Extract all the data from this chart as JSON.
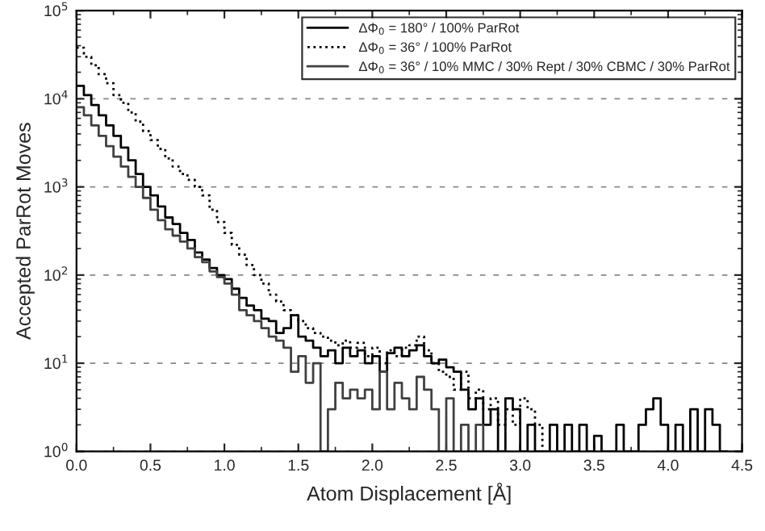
{
  "chart_data": {
    "type": "step",
    "xlabel": "Atom Displacement [Å]",
    "ylabel": "Accepted ParRot Moves",
    "log": "y",
    "grid": "y",
    "legend": "top right",
    "xlim": [
      0,
      4.5
    ],
    "xticks": [
      {
        "value": 0,
        "label": "0.0"
      },
      {
        "value": 0.5,
        "label": "0.5"
      },
      {
        "value": 1,
        "label": "1.0"
      },
      {
        "value": 1.5,
        "label": "1.5"
      },
      {
        "value": 2,
        "label": "2.0"
      },
      {
        "value": 2.5,
        "label": "2.5"
      },
      {
        "value": 3,
        "label": "3.0"
      },
      {
        "value": 3.5,
        "label": "3.5"
      },
      {
        "value": 4,
        "label": "4.0"
      },
      {
        "value": 4.5,
        "label": "4.5"
      }
    ],
    "ylim": [
      1,
      100000
    ],
    "yticks": [
      {
        "value": 1,
        "label": "10$^{0}$"
      },
      {
        "value": 10,
        "label": "10$^{1}$"
      },
      {
        "value": 100,
        "label": "10$^{2}$"
      },
      {
        "value": 1000,
        "label": "10$^{3}$"
      },
      {
        "value": 10000,
        "label": "10$^{4}$"
      },
      {
        "value": 100000,
        "label": "10$^{5}$"
      }
    ],
    "series": [
      {
        "name": "ΔΦ$_{0}$ = 180° / 100% ParRot",
        "color": "#000000",
        "line_style": "solid",
        "x": [
          0,
          0.05,
          0.1,
          0.15,
          0.2,
          0.25,
          0.3,
          0.35,
          0.4,
          0.45,
          0.5,
          0.55,
          0.6,
          0.65,
          0.7,
          0.75,
          0.8,
          0.85,
          0.9,
          0.95,
          1,
          1.05,
          1.1,
          1.15,
          1.2,
          1.25,
          1.3,
          1.35,
          1.4,
          1.45,
          1.5,
          1.55,
          1.6,
          1.65,
          1.7,
          1.75,
          1.8,
          1.85,
          1.9,
          1.95,
          2,
          2.05,
          2.1,
          2.15,
          2.2,
          2.25,
          2.3,
          2.35,
          2.4,
          2.45,
          2.5,
          2.55,
          2.6,
          2.65,
          2.7,
          2.75,
          2.8,
          2.85,
          2.9,
          2.95,
          3,
          3.05,
          3.1,
          3.15,
          3.2,
          3.25,
          3.3,
          3.35,
          3.4,
          3.45,
          3.5,
          3.55,
          3.6,
          3.65,
          3.7,
          3.75,
          3.8,
          3.85,
          3.9,
          3.95,
          4,
          4.05,
          4.1,
          4.15,
          4.2,
          4.25,
          4.3,
          4.35,
          4.4
        ],
        "values": [
          14000,
          11000,
          8500,
          6500,
          5000,
          3800,
          2800,
          2000,
          1400,
          1000,
          800,
          600,
          450,
          380,
          300,
          250,
          180,
          150,
          120,
          100,
          90,
          70,
          55,
          45,
          40,
          32,
          30,
          22,
          25,
          35,
          20,
          18,
          15,
          12,
          14,
          10,
          15,
          12,
          14,
          10,
          12,
          8,
          13,
          15,
          12,
          14,
          16,
          12,
          10,
          11,
          9,
          8,
          5,
          3,
          4,
          2,
          3,
          1,
          4,
          3,
          1,
          2,
          1,
          1,
          2,
          1,
          2,
          1,
          2,
          1,
          1.5,
          1,
          1,
          2,
          1,
          1,
          2,
          3,
          4,
          2,
          1,
          2,
          1,
          3,
          1,
          3,
          2,
          1,
          1
        ]
      },
      {
        "name": "ΔΦ$_{0}$ = 36° / 100% ParRot",
        "color": "#000000",
        "line_style": "dotted",
        "x": [
          0,
          0.05,
          0.1,
          0.15,
          0.2,
          0.25,
          0.3,
          0.35,
          0.4,
          0.45,
          0.5,
          0.55,
          0.6,
          0.65,
          0.7,
          0.75,
          0.8,
          0.85,
          0.9,
          0.95,
          1,
          1.05,
          1.1,
          1.15,
          1.2,
          1.25,
          1.3,
          1.35,
          1.4,
          1.45,
          1.5,
          1.55,
          1.6,
          1.65,
          1.7,
          1.75,
          1.8,
          1.85,
          1.9,
          1.95,
          2,
          2.05,
          2.1,
          2.15,
          2.2,
          2.25,
          2.3,
          2.35,
          2.4,
          2.45,
          2.5,
          2.55,
          2.6,
          2.65,
          2.7,
          2.75,
          2.8,
          2.85,
          2.9,
          2.95,
          3,
          3.05,
          3.1,
          3.15
        ],
        "values": [
          38000,
          30000,
          24000,
          19000,
          15000,
          11000,
          9000,
          7000,
          5500,
          4300,
          3400,
          2700,
          2100,
          1700,
          1400,
          1200,
          1000,
          800,
          550,
          400,
          300,
          220,
          170,
          130,
          100,
          80,
          60,
          50,
          40,
          35,
          30,
          25,
          22,
          20,
          18,
          16,
          18,
          15,
          17,
          12,
          15,
          10,
          14,
          12,
          15,
          16,
          20,
          14,
          10,
          8,
          7,
          5,
          8,
          4,
          5,
          3,
          4,
          2,
          3,
          2,
          4,
          3,
          2,
          1
        ]
      },
      {
        "name": "ΔΦ$_{0}$ = 36° / 10% MMC / 30% Rept / 30% CBMC / 30% ParRot",
        "color": "#404040",
        "line_style": "solid",
        "x": [
          0,
          0.05,
          0.1,
          0.15,
          0.2,
          0.25,
          0.3,
          0.35,
          0.4,
          0.45,
          0.5,
          0.55,
          0.6,
          0.65,
          0.7,
          0.75,
          0.8,
          0.85,
          0.9,
          0.95,
          1,
          1.05,
          1.1,
          1.15,
          1.2,
          1.25,
          1.3,
          1.35,
          1.4,
          1.45,
          1.5,
          1.55,
          1.6,
          1.65,
          1.7,
          1.75,
          1.8,
          1.85,
          1.9,
          1.95,
          2,
          2.05,
          2.1,
          2.15,
          2.2,
          2.25,
          2.3,
          2.35,
          2.4,
          2.45,
          2.5,
          2.55,
          2.6,
          2.65,
          2.7,
          2.75,
          2.8
        ],
        "values": [
          8000,
          6500,
          5000,
          3800,
          2900,
          2200,
          1700,
          1300,
          1000,
          750,
          550,
          420,
          330,
          280,
          240,
          200,
          160,
          140,
          110,
          95,
          80,
          60,
          40,
          35,
          30,
          25,
          20,
          18,
          15,
          8,
          12,
          6,
          10,
          1,
          3,
          6,
          4,
          5,
          4,
          5,
          3,
          8,
          3,
          6,
          4,
          3,
          7,
          5,
          3,
          1,
          4,
          1,
          2,
          1,
          2,
          1,
          1
        ]
      }
    ]
  }
}
